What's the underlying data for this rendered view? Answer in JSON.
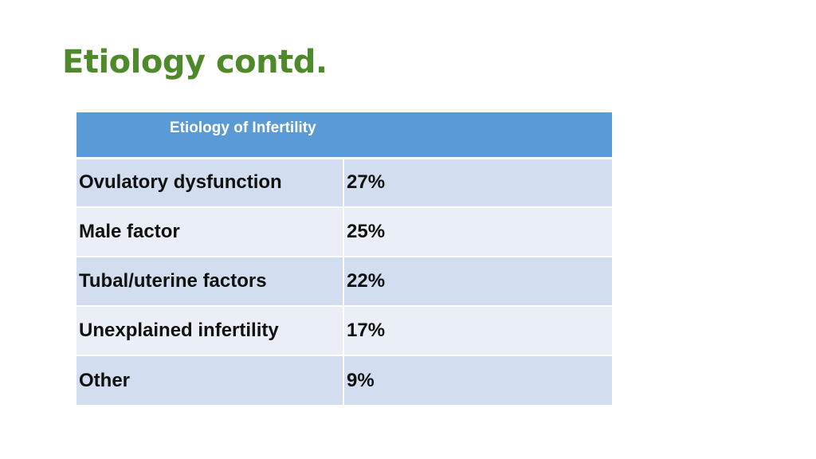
{
  "slide": {
    "title": "Etiology contd."
  },
  "table": {
    "header": "Etiology of Infertility",
    "rows": [
      {
        "factor": "Ovulatory dysfunction",
        "percent": "27%"
      },
      {
        "factor": "Male factor",
        "percent": "25%"
      },
      {
        "factor": "Tubal/uterine factors",
        "percent": "22%"
      },
      {
        "factor": "Unexplained infertility",
        "percent": "17%"
      },
      {
        "factor": "Other",
        "percent": "9%"
      }
    ]
  },
  "colors": {
    "title": "#4e8a2a",
    "header_bg": "#5b9bd5",
    "row_band_dark": "#d2deef",
    "row_band_light": "#eaeff7"
  }
}
